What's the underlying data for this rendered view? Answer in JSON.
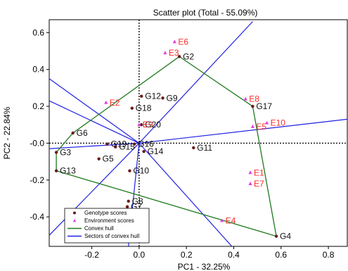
{
  "chart_data": {
    "type": "scatter",
    "title": "Scatter plot (Total - 55.09%)",
    "xlabel": "PC1 - 32.25%",
    "ylabel": "PC2 - 22.84%",
    "xlim": [
      -0.38,
      0.88
    ],
    "ylim": [
      -0.56,
      0.67
    ],
    "x_ticks": [
      -0.2,
      0.0,
      0.2,
      0.4,
      0.6,
      0.8
    ],
    "x_tick_labels": [
      "-0.2",
      "0.0",
      "0.2",
      "0.4",
      "0.6",
      "0.8"
    ],
    "y_ticks": [
      -0.4,
      -0.2,
      0.0,
      0.2,
      0.4,
      0.6
    ],
    "y_tick_labels": [
      "-0.4",
      "-0.2",
      "-0.0",
      "0.2",
      "0.4",
      "0.6"
    ],
    "grid": false,
    "origin_dashed_lines": true,
    "legend_position": "bottom-left",
    "legend": [
      {
        "label": "Genotype scores",
        "symbol": "dot",
        "color": "#6b1a1a"
      },
      {
        "label": "Environment scores",
        "symbol": "triangle",
        "color": "#e040e0"
      },
      {
        "label": "Convex hull",
        "symbol": "line",
        "color": "#1f7a1f"
      },
      {
        "label": "Sectors of convex hull",
        "symbol": "line",
        "color": "#2020e0"
      }
    ],
    "colors": {
      "genotype": "#6b1a1a",
      "environment": "#e040e0",
      "hull": "#1f7a1f",
      "sectors": "#2020e0",
      "env_label": "#ff2a2a"
    },
    "genotypes": [
      {
        "name": "G2",
        "x": 0.17,
        "y": 0.47
      },
      {
        "name": "G3",
        "x": -0.35,
        "y": -0.05
      },
      {
        "name": "G4",
        "x": 0.58,
        "y": -0.505
      },
      {
        "name": "G5",
        "x": -0.17,
        "y": -0.085
      },
      {
        "name": "G6",
        "x": -0.28,
        "y": 0.055
      },
      {
        "name": "G7",
        "x": -0.05,
        "y": -0.345
      },
      {
        "name": "G8",
        "x": -0.045,
        "y": -0.315
      },
      {
        "name": "G9",
        "x": 0.1,
        "y": 0.245
      },
      {
        "name": "G10",
        "x": -0.04,
        "y": -0.15
      },
      {
        "name": "G11",
        "x": 0.23,
        "y": -0.025
      },
      {
        "name": "G12",
        "x": 0.01,
        "y": 0.255
      },
      {
        "name": "G13",
        "x": -0.35,
        "y": -0.15
      },
      {
        "name": "G14",
        "x": 0.02,
        "y": -0.045
      },
      {
        "name": "G15",
        "x": -0.1,
        "y": -0.02
      },
      {
        "name": "G16",
        "x": -0.02,
        "y": -0.005
      },
      {
        "name": "G17",
        "x": 0.48,
        "y": 0.2
      },
      {
        "name": "G18",
        "x": -0.03,
        "y": 0.19
      },
      {
        "name": "G19",
        "x": -0.135,
        "y": -0.005
      },
      {
        "name": "G20",
        "x": 0.01,
        "y": 0.1
      }
    ],
    "environments": [
      {
        "name": "E1",
        "x": 0.47,
        "y": -0.16
      },
      {
        "name": "E2",
        "x": -0.14,
        "y": 0.22
      },
      {
        "name": "E3",
        "x": 0.11,
        "y": 0.49
      },
      {
        "name": "E4",
        "x": 0.35,
        "y": -0.42
      },
      {
        "name": "E5",
        "x": 0.48,
        "y": 0.09
      },
      {
        "name": "E6",
        "x": 0.15,
        "y": 0.55
      },
      {
        "name": "E7",
        "x": 0.47,
        "y": -0.22
      },
      {
        "name": "E8",
        "x": 0.45,
        "y": 0.24
      },
      {
        "name": "E9",
        "x": 0.0,
        "y": 0.1
      },
      {
        "name": "E10",
        "x": 0.54,
        "y": 0.11
      }
    ],
    "convex_hull": [
      "G2",
      "G17",
      "G4",
      "G13",
      "G3",
      "G6"
    ],
    "sector_lines": [
      {
        "x": 0.48,
        "y": 0.66
      },
      {
        "x": 0.88,
        "y": 0.13
      },
      {
        "x": 0.42,
        "y": -0.6
      },
      {
        "x": -0.05,
        "y": -0.62
      },
      {
        "x": -0.38,
        "y": -0.5
      },
      {
        "x": -0.38,
        "y": -0.03
      },
      {
        "x": -0.38,
        "y": 0.23
      },
      {
        "x": -0.38,
        "y": 0.35
      }
    ]
  }
}
